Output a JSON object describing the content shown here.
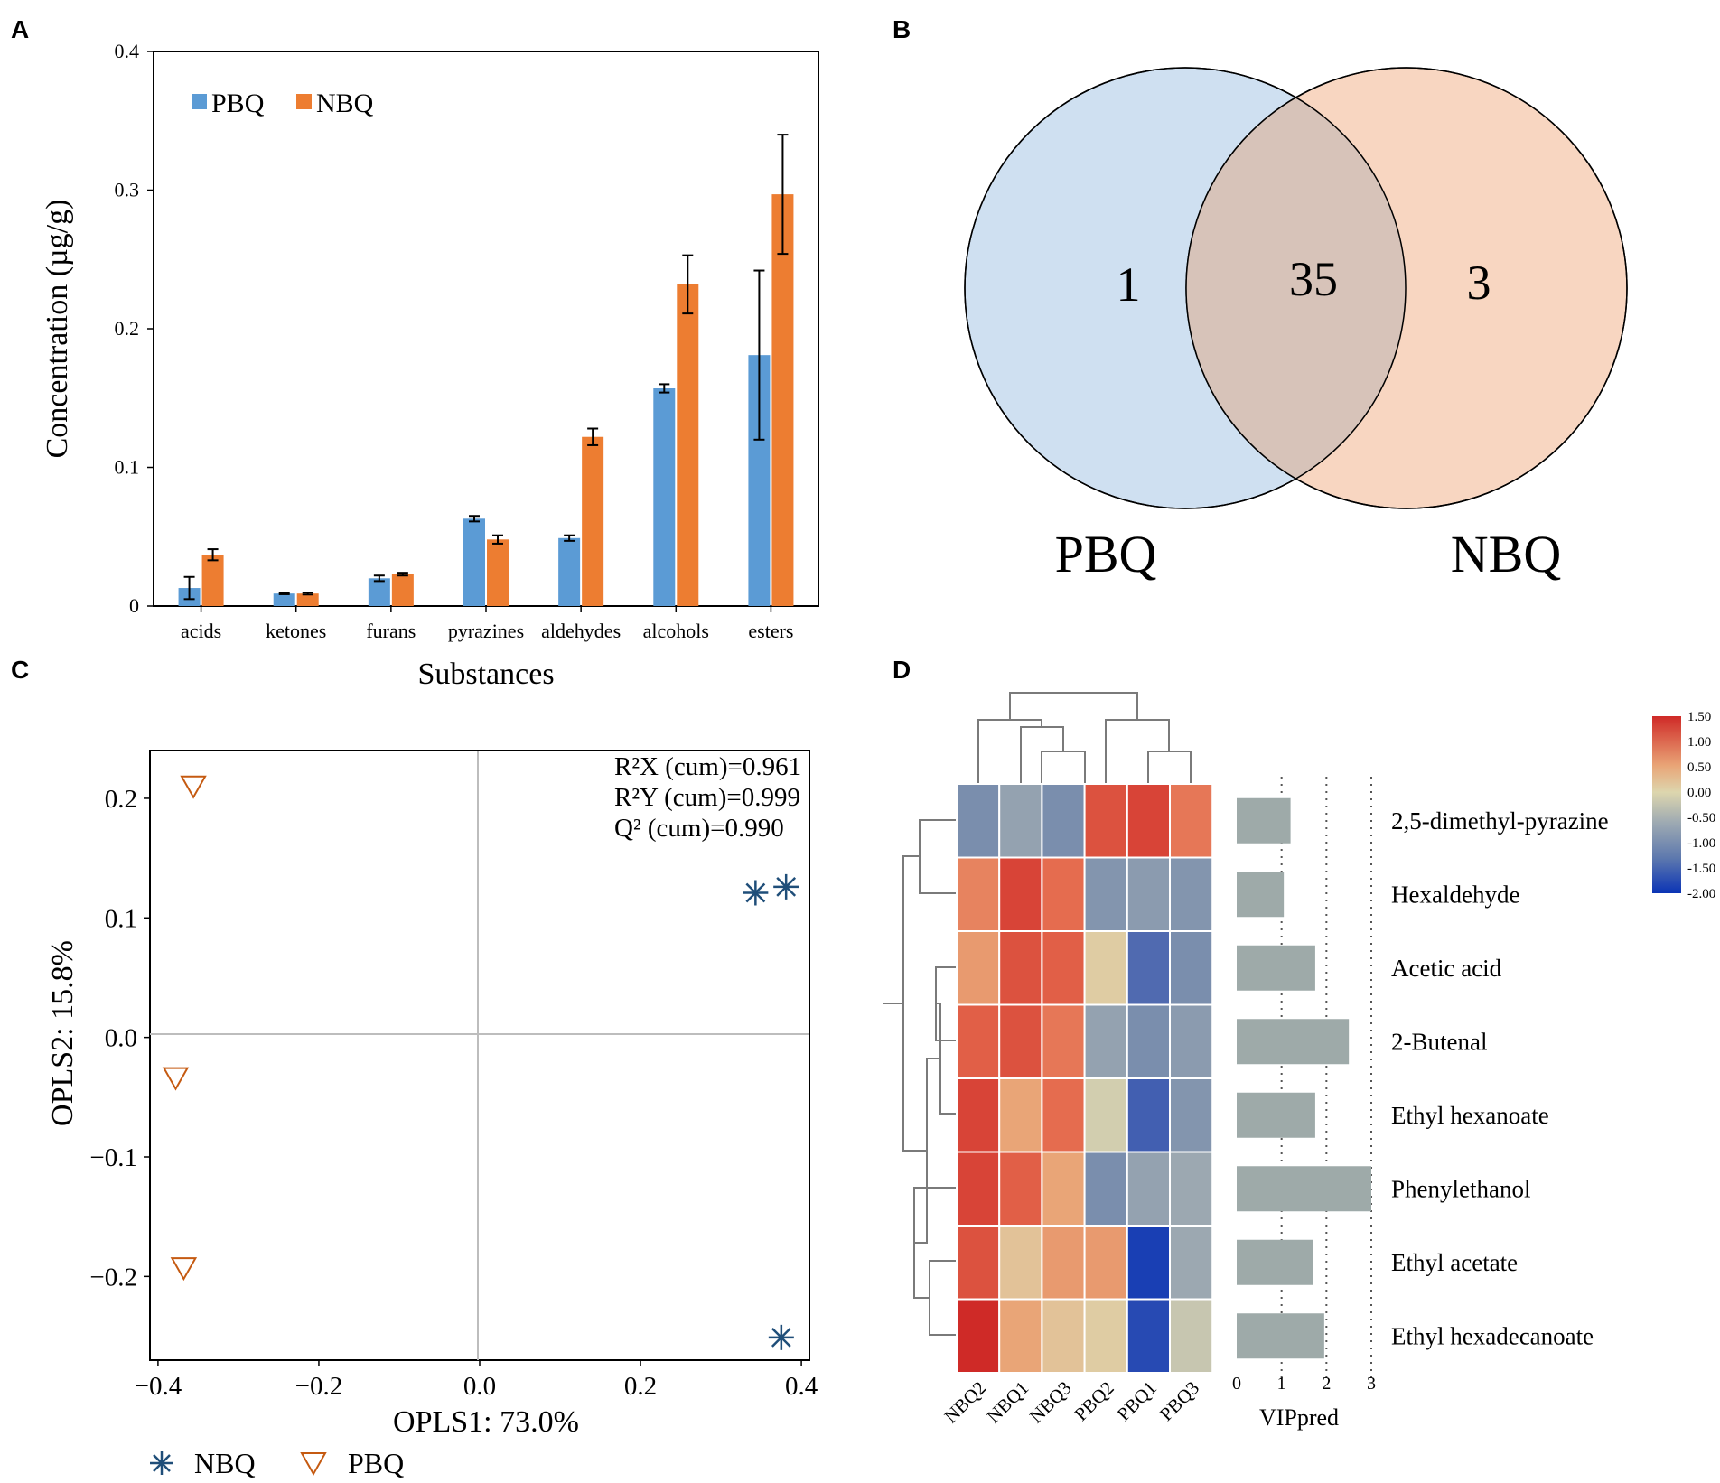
{
  "panels": {
    "a": "A",
    "b": "B",
    "c": "C",
    "d": "D"
  },
  "colors": {
    "pbq": "#5b9bd5",
    "nbq": "#ed7d31",
    "venn_pbq": "#cfe0f1",
    "venn_nbq": "#f8d6c1",
    "venn_overlap": "#d7c3b9",
    "nbq_marker": "#1f4e79",
    "pbq_marker": "#c55a11",
    "vip_bar": "#9eaaa9"
  },
  "chart_data": [
    {
      "type": "bar",
      "panel": "A",
      "xlabel": "Substances",
      "ylabel": "Concentration (µg/g)",
      "ylim": [
        0,
        0.4
      ],
      "yticks": [
        0,
        0.1,
        0.2,
        0.3,
        0.4
      ],
      "ytick_labels": [
        "0",
        "0.1",
        "0.2",
        "0.3",
        "0.4"
      ],
      "legend_position": "top-left",
      "categories": [
        "acids",
        "ketones",
        "furans",
        "pyrazines",
        "aldehydes",
        "alcohols",
        "esters"
      ],
      "series": [
        {
          "name": "PBQ",
          "values": [
            0.013,
            0.009,
            0.02,
            0.063,
            0.049,
            0.157,
            0.181
          ],
          "errors": [
            0.008,
            0.0005,
            0.002,
            0.002,
            0.002,
            0.003,
            0.061
          ]
        },
        {
          "name": "NBQ",
          "values": [
            0.037,
            0.009,
            0.023,
            0.048,
            0.122,
            0.232,
            0.297
          ],
          "errors": [
            0.004,
            0.0007,
            0.001,
            0.003,
            0.006,
            0.021,
            0.043
          ]
        }
      ]
    },
    {
      "type": "venn",
      "panel": "B",
      "sets": [
        "PBQ",
        "NBQ"
      ],
      "only_pbq": "1",
      "shared": "35",
      "only_nbq": "3"
    },
    {
      "type": "scatter",
      "panel": "C",
      "xlabel": "OPLS1: 73.0%",
      "ylabel": "OPLS2: 15.8%",
      "xlim": [
        -0.41,
        0.41
      ],
      "ylim": [
        -0.27,
        0.24
      ],
      "xticks": [
        -0.4,
        -0.2,
        0.0,
        0.2,
        0.4
      ],
      "xtick_labels": [
        "−0.4",
        "−0.2",
        "0.0",
        "0.2",
        "0.4"
      ],
      "yticks": [
        -0.2,
        -0.1,
        0.0,
        0.1,
        0.2
      ],
      "ytick_labels": [
        "−0.2",
        "−0.1",
        "0.0",
        "0.1",
        "0.2"
      ],
      "annotations": [
        "R²X (cum)=0.961",
        "R²Y (cum)=0.999",
        "Q² (cum)=0.990"
      ],
      "legend_position": "bottom",
      "series": [
        {
          "name": "NBQ",
          "marker": "asterisk",
          "points": [
            [
              0.343,
              0.121
            ],
            [
              0.381,
              0.126
            ],
            [
              0.375,
              -0.251
            ]
          ]
        },
        {
          "name": "PBQ",
          "marker": "triangle-down",
          "points": [
            [
              -0.356,
              0.21
            ],
            [
              -0.378,
              -0.034
            ],
            [
              -0.368,
              -0.193
            ]
          ]
        }
      ]
    },
    {
      "type": "heatmap",
      "panel": "D",
      "columns": [
        "NBQ2",
        "NBQ1",
        "NBQ3",
        "PBQ2",
        "PBQ1",
        "PBQ3"
      ],
      "rows": [
        "2,5-dimethyl-pyrazine",
        "Hexaldehyde",
        "Acetic acid",
        "2-Butenal",
        "Ethyl hexanoate",
        "Phenylethanol",
        "Ethyl acetate",
        "Ethyl hexadecanoate"
      ],
      "values": [
        [
          -1.0,
          -0.7,
          -1.0,
          1.2,
          1.3,
          0.9
        ],
        [
          0.8,
          1.3,
          1.0,
          -0.9,
          -0.8,
          -0.9
        ],
        [
          0.6,
          1.2,
          1.1,
          0.1,
          -1.5,
          -1.0
        ],
        [
          1.1,
          1.2,
          0.9,
          -0.7,
          -1.0,
          -0.8
        ],
        [
          1.3,
          0.5,
          1.0,
          -0.1,
          -1.6,
          -0.9
        ],
        [
          1.3,
          1.1,
          0.5,
          -1.0,
          -0.7,
          -0.6
        ],
        [
          1.2,
          0.2,
          0.6,
          0.6,
          -1.9,
          -0.6
        ],
        [
          1.5,
          0.5,
          0.2,
          0.1,
          -1.8,
          -0.2
        ]
      ],
      "colorbar": {
        "min": -2.0,
        "max": 1.5,
        "tick_labels": [
          "1.50",
          "1.00",
          "0.50",
          "0.00",
          "-0.50",
          "-1.00",
          "-1.50",
          "-2.00"
        ],
        "tick_values": [
          1.5,
          1.0,
          0.5,
          0.0,
          -0.5,
          -1.0,
          -1.5,
          -2.0
        ]
      },
      "vip": {
        "label": "VIPpred",
        "xlim": [
          0,
          3
        ],
        "ticks": [
          "0",
          "1",
          "2",
          "3"
        ],
        "values": [
          1.2,
          1.05,
          1.75,
          2.5,
          1.75,
          3.0,
          1.7,
          1.95
        ]
      }
    }
  ]
}
